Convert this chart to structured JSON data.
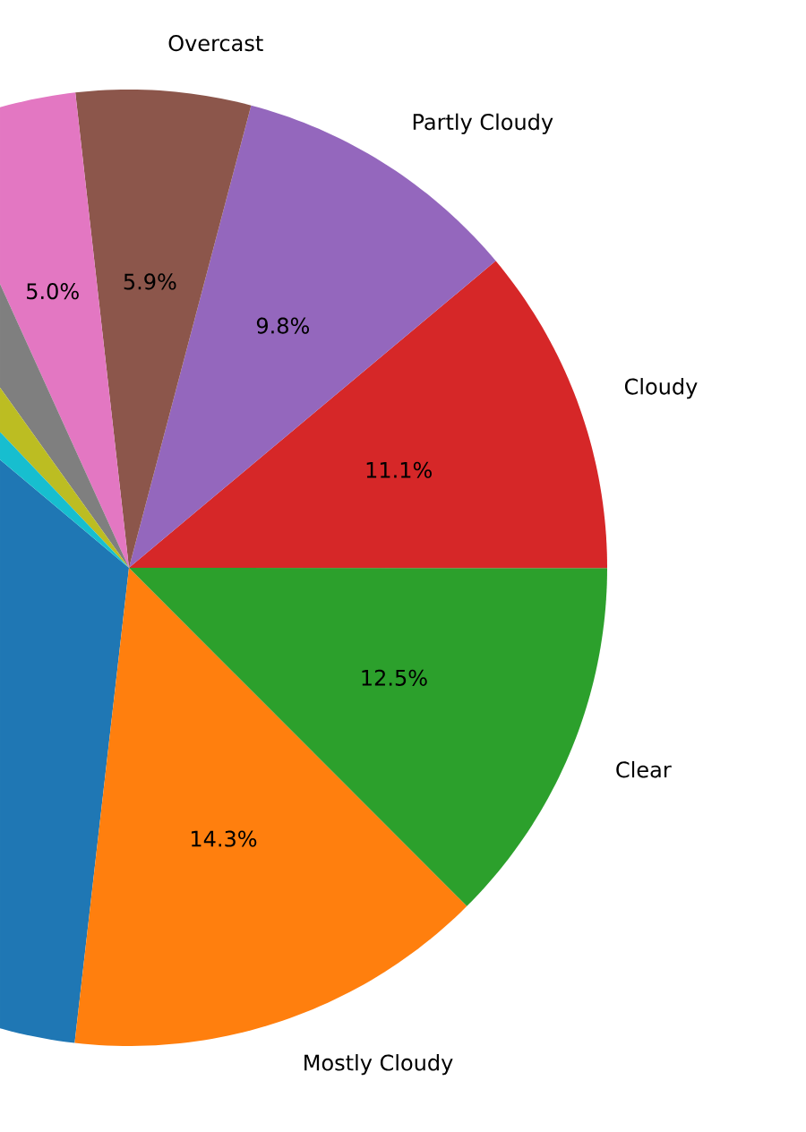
{
  "chart_data": {
    "type": "pie",
    "categories": [
      null,
      "Mostly Cloudy",
      "Clear",
      "Cloudy",
      "Partly Cloudy",
      "Overcast",
      null,
      null,
      null,
      null
    ],
    "values": [
      34.3,
      14.3,
      12.5,
      11.1,
      9.8,
      5.9,
      5.0,
      3.1,
      2.2,
      1.8
    ],
    "value_labels": [
      null,
      "14.3%",
      "12.5%",
      "11.1%",
      "9.8%",
      "5.9%",
      "5.0%",
      null,
      null,
      null
    ],
    "colors": [
      "#1f77b4",
      "#ff7f0e",
      "#2ca02c",
      "#d62728",
      "#9467bd",
      "#8c564b",
      "#e377c2",
      "#7f7f7f",
      "#bcbd22",
      "#17becf"
    ]
  }
}
